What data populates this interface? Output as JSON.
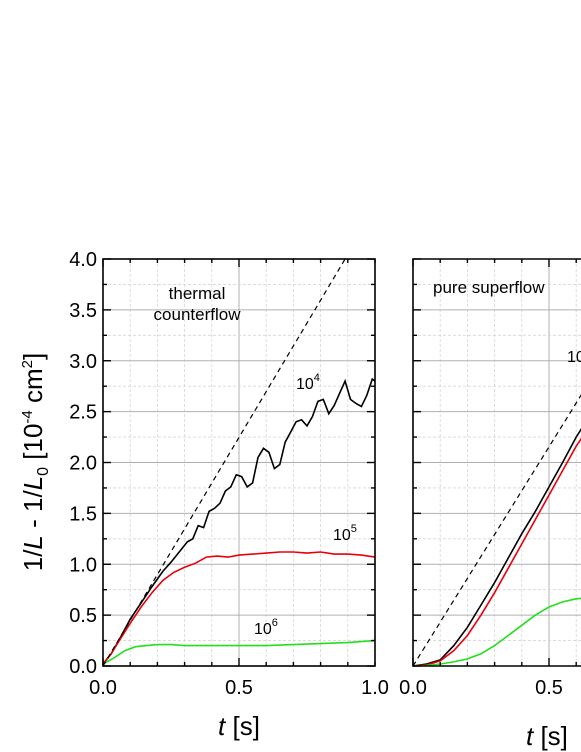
{
  "chart_data": [
    {
      "type": "line",
      "title": "",
      "annotation": "thermal\ncounterflow",
      "xlabel": {
        "italic": "t",
        "rest": " [s]"
      },
      "ylabel": {
        "text": "1/L - 1/L0 [10-4 cm2]"
      },
      "xlim": [
        0.0,
        1.0
      ],
      "ylim": [
        0.0,
        4.0
      ],
      "x_ticks": [
        "0.0",
        "0.5",
        "1.0"
      ],
      "y_ticks": [
        "0.0",
        "0.5",
        "1.0",
        "1.5",
        "2.0",
        "2.5",
        "3.0",
        "3.5",
        "4.0"
      ],
      "grid": true,
      "series": [
        {
          "label_base": "10",
          "label_exp": "4",
          "color": "#000000",
          "x": [
            0.0,
            0.03,
            0.06,
            0.1,
            0.14,
            0.18,
            0.22,
            0.25,
            0.28,
            0.31,
            0.33,
            0.35,
            0.37,
            0.39,
            0.41,
            0.43,
            0.45,
            0.47,
            0.49,
            0.51,
            0.53,
            0.55,
            0.57,
            0.59,
            0.61,
            0.63,
            0.65,
            0.67,
            0.69,
            0.71,
            0.73,
            0.75,
            0.77,
            0.79,
            0.81,
            0.83,
            0.85,
            0.87,
            0.89,
            0.91,
            0.93,
            0.95,
            0.97,
            0.99,
            1.0
          ],
          "y": [
            0.02,
            0.12,
            0.26,
            0.46,
            0.62,
            0.78,
            0.93,
            1.02,
            1.12,
            1.22,
            1.25,
            1.38,
            1.36,
            1.52,
            1.55,
            1.6,
            1.72,
            1.76,
            1.88,
            1.86,
            1.76,
            1.8,
            2.05,
            2.14,
            2.1,
            1.94,
            1.98,
            2.2,
            2.3,
            2.4,
            2.42,
            2.36,
            2.45,
            2.6,
            2.62,
            2.48,
            2.56,
            2.68,
            2.8,
            2.62,
            2.58,
            2.55,
            2.66,
            2.82,
            2.8
          ]
        },
        {
          "label_base": "10",
          "label_exp": "5",
          "color": "#e8000b",
          "x": [
            0.0,
            0.03,
            0.06,
            0.1,
            0.14,
            0.18,
            0.22,
            0.26,
            0.3,
            0.34,
            0.38,
            0.42,
            0.46,
            0.5,
            0.55,
            0.6,
            0.65,
            0.7,
            0.75,
            0.8,
            0.85,
            0.9,
            0.95,
            1.0
          ],
          "y": [
            0.02,
            0.12,
            0.25,
            0.42,
            0.58,
            0.72,
            0.84,
            0.92,
            0.97,
            1.01,
            1.07,
            1.08,
            1.07,
            1.09,
            1.1,
            1.11,
            1.12,
            1.12,
            1.11,
            1.12,
            1.1,
            1.1,
            1.09,
            1.07
          ]
        },
        {
          "label_base": "10",
          "label_exp": "6",
          "color": "#22e01b",
          "x": [
            0.0,
            0.04,
            0.08,
            0.12,
            0.16,
            0.2,
            0.25,
            0.3,
            0.4,
            0.5,
            0.6,
            0.7,
            0.8,
            0.9,
            1.0
          ],
          "y": [
            0.02,
            0.08,
            0.15,
            0.19,
            0.2,
            0.21,
            0.21,
            0.2,
            0.2,
            0.2,
            0.2,
            0.21,
            0.22,
            0.23,
            0.25
          ]
        },
        {
          "label_base": "",
          "label_exp": "",
          "color": "#000000",
          "dashed": true,
          "x": [
            0.0,
            0.89
          ],
          "y": [
            0.0,
            4.0
          ]
        }
      ]
    },
    {
      "type": "line",
      "title": "",
      "annotation": "pure superflow",
      "xlabel": {
        "italic": "t",
        "rest": " [s]"
      },
      "xlim": [
        0.0,
        1.0
      ],
      "ylim": [
        0.0,
        4.0
      ],
      "x_ticks": [
        "0.0",
        "0.5"
      ],
      "grid": true,
      "series": [
        {
          "label_base": "10",
          "label_exp": "",
          "color": "#000000",
          "x": [
            0.0,
            0.05,
            0.1,
            0.15,
            0.2,
            0.25,
            0.3,
            0.35,
            0.4,
            0.45,
            0.5,
            0.55,
            0.6,
            0.65
          ],
          "y": [
            0.0,
            0.02,
            0.06,
            0.2,
            0.38,
            0.6,
            0.82,
            1.06,
            1.3,
            1.52,
            1.76,
            2.0,
            2.25,
            2.46
          ]
        },
        {
          "label_base": "",
          "label_exp": "",
          "color": "#e8000b",
          "x": [
            0.0,
            0.05,
            0.1,
            0.15,
            0.2,
            0.25,
            0.3,
            0.35,
            0.4,
            0.45,
            0.5,
            0.55,
            0.6,
            0.65
          ],
          "y": [
            0.0,
            0.01,
            0.05,
            0.15,
            0.3,
            0.5,
            0.72,
            0.96,
            1.2,
            1.44,
            1.68,
            1.92,
            2.16,
            2.36
          ]
        },
        {
          "label_base": "",
          "label_exp": "",
          "color": "#22e01b",
          "x": [
            0.0,
            0.05,
            0.1,
            0.15,
            0.2,
            0.25,
            0.3,
            0.35,
            0.4,
            0.45,
            0.5,
            0.55,
            0.6,
            0.65
          ],
          "y": [
            0.0,
            0.005,
            0.02,
            0.04,
            0.07,
            0.12,
            0.2,
            0.3,
            0.4,
            0.5,
            0.58,
            0.63,
            0.66,
            0.67
          ]
        },
        {
          "label_base": "",
          "label_exp": "",
          "color": "#000000",
          "dashed": true,
          "x": [
            0.0,
            0.65
          ],
          "y": [
            0.0,
            2.8
          ]
        }
      ]
    }
  ]
}
